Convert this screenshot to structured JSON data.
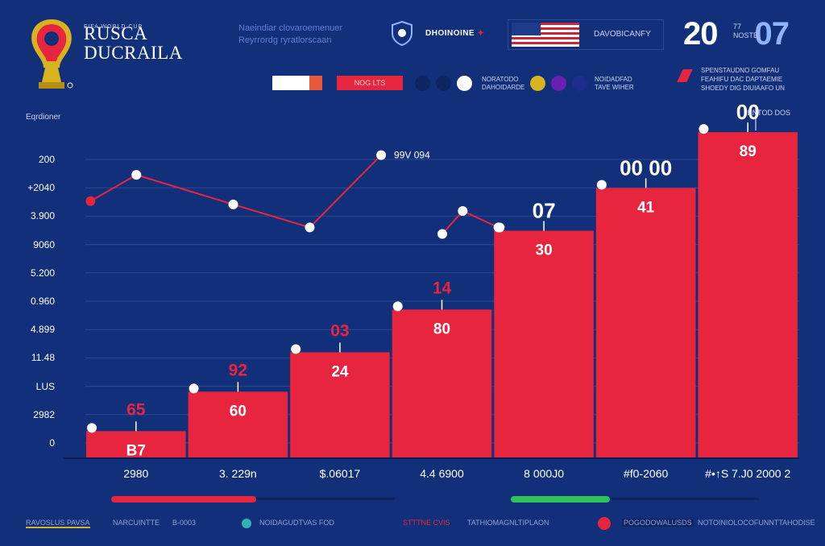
{
  "header": {
    "brand_small": "FIFA WORLD CUP",
    "brand_line1": "RUSCA",
    "brand_line2": "DUCRAILA",
    "subtitle_line1": "Naeindiar clovaroemenuer",
    "subtitle_line2": "Reyrrordg ryratlorscaan",
    "org_label": "DHOINOINE",
    "flag_label": "DAVOBICANFY",
    "year_left": "20",
    "year_right": "07",
    "year_note_1": "77",
    "year_note_2": "NOSTE"
  },
  "legend": {
    "red_box_label": "NOG LTS",
    "group1_line1": "NORATODO",
    "group1_line2": "DAHOIDARDE",
    "group2_line1": "NOIDADFAD",
    "group2_line2": "TAVE WIHER",
    "right_note": "SPENSTAUDNO GOMFAU FEAHIFU DAC DAPTAEMIE SHOEDY DIG DIUIAAFO UN",
    "colors": {
      "white": "#ffffff",
      "orange": "#e8583a",
      "red": "#e8253e",
      "navy1": "#0e2560",
      "navy2": "#0e2560",
      "white2": "#ffffff",
      "gold": "#d9b21f",
      "purple": "#6a1fb0",
      "navy3": "#1e2d8c"
    }
  },
  "chart_data": {
    "type": "bar",
    "unit_label": "Eqrdioner",
    "ytick_labels": [
      "200",
      "+2040",
      "3.900",
      "9060",
      "5.200",
      "0.960",
      "4.899",
      "11.48",
      "LUS",
      "2982",
      "0"
    ],
    "categories": [
      "2980",
      "3. 229n",
      "$.06017",
      "4.4 6900",
      "8 000J0",
      "#f0-2060",
      "#•↑S 7.J0 2000 2"
    ],
    "values": [
      8,
      20,
      32,
      45,
      69,
      82,
      99
    ],
    "ylim": [
      0,
      100
    ],
    "bar_labels": [
      "B7",
      "60",
      "24",
      "80",
      "30",
      "41",
      "89"
    ],
    "top_labels": [
      "65",
      "92",
      "03",
      "14",
      "07",
      "00 00",
      "00"
    ],
    "top_label_colors": [
      "red",
      "red",
      "red",
      "red",
      "white",
      "white",
      "white"
    ],
    "right_top_annotation": "ENTOD DOS",
    "line_series": {
      "color": "#e8253e",
      "segments": [
        [
          [
            0.05,
            78
          ],
          [
            0.5,
            86
          ],
          [
            1.45,
            77
          ],
          [
            2.2,
            70
          ],
          [
            2.9,
            92
          ]
        ],
        [
          [
            3.5,
            68
          ],
          [
            3.7,
            75
          ],
          [
            4.05,
            70
          ]
        ]
      ],
      "annotation": "99V 094"
    },
    "bar_color": "#e8253e",
    "grid": true
  },
  "bottom": {
    "progress_left": 0.51,
    "progress_right": 0.4,
    "progress_left_color": "#e8253e",
    "progress_right_color": "#2fc35b"
  },
  "footer": {
    "item1": "RAVOSLUS PAVSA",
    "item2": "NARCUINTTE",
    "item3": "B-0003",
    "item4": "NOIDAGUDTVAS FOD",
    "item5": "STTTNE CVIS",
    "item6": "TATHIOMAGNLTIPLAON",
    "item7": "POGODOWALUSDS",
    "item8": "NOTOINIOLOCOFUNNTTAHODISE"
  }
}
